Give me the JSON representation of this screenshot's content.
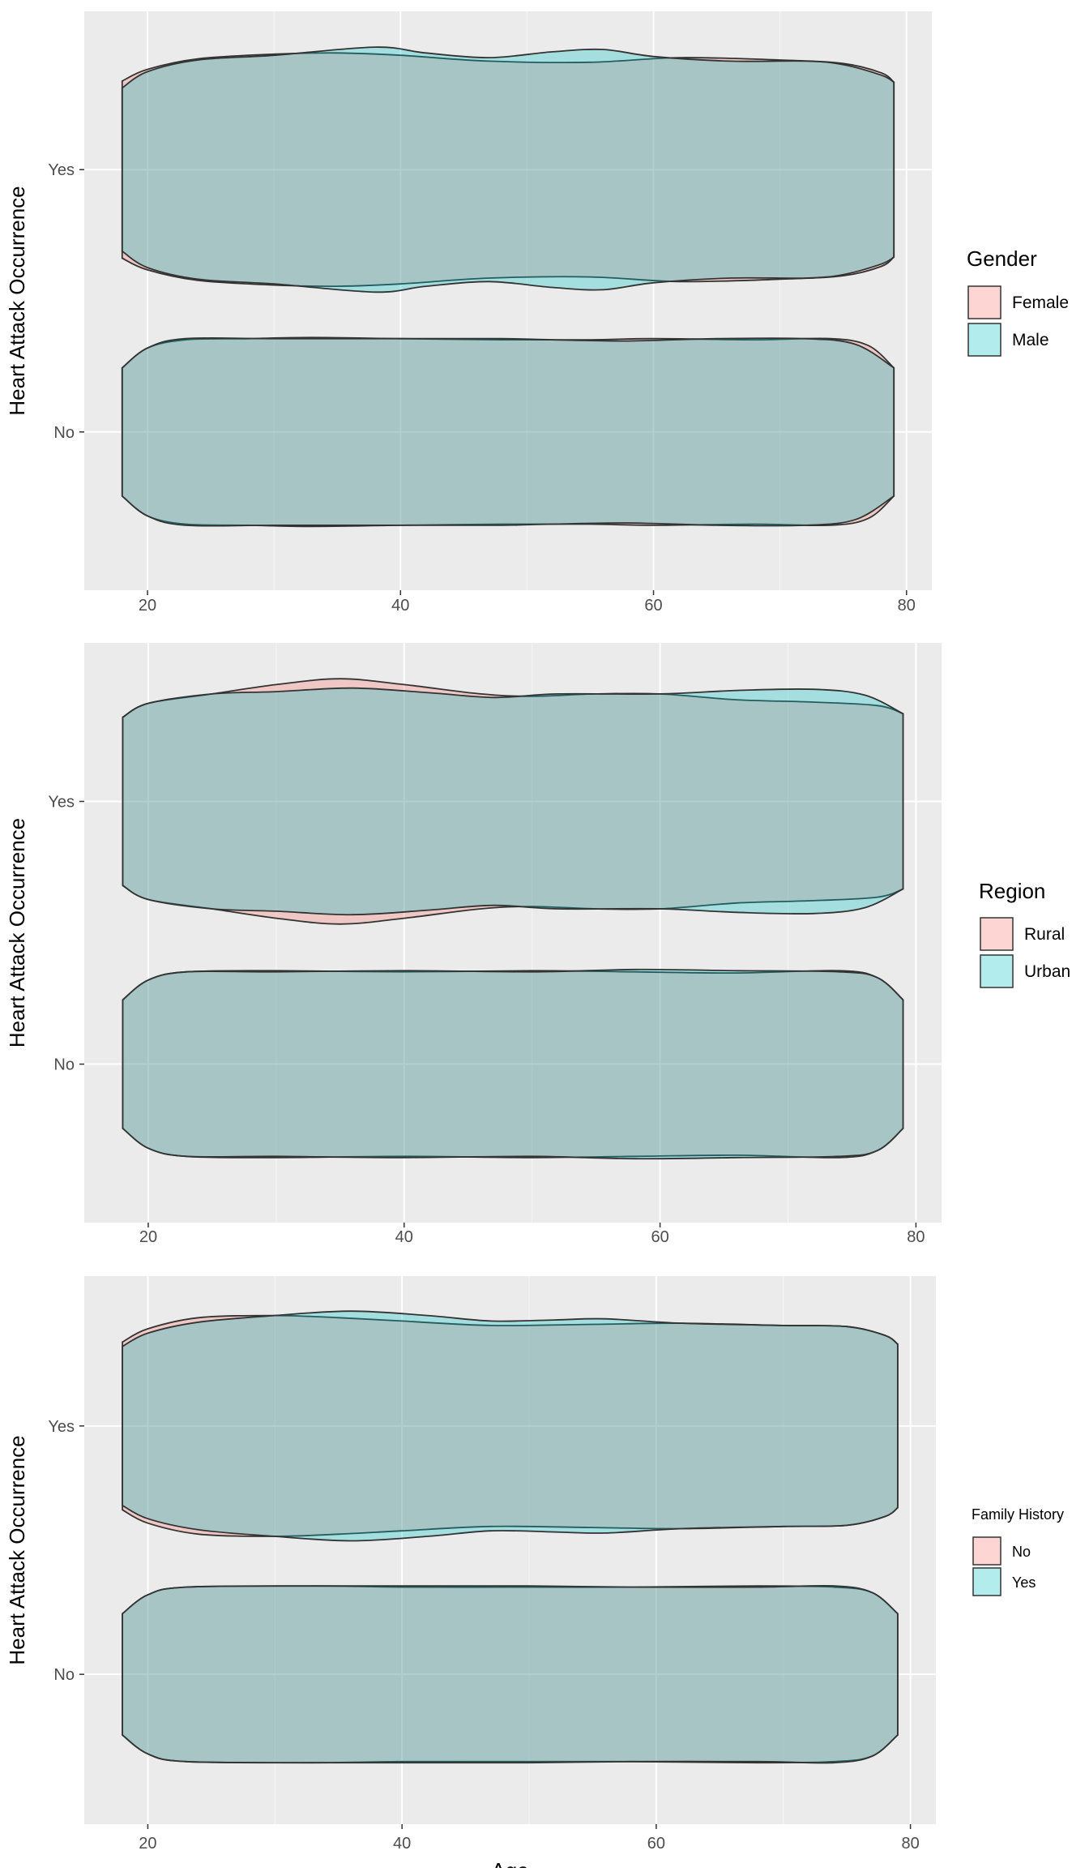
{
  "colors": {
    "panel_bg": "#EBEBEB",
    "grid": "#FFFFFF",
    "fill_a": "#F8766D",
    "fill_b": "#00BFC4",
    "outline": "#333333",
    "text": "#4D4D4D",
    "title_text": "#000000"
  },
  "chart_data": [
    {
      "type": "violin",
      "ylabel": "Heart Attack Occurrence",
      "xlabel": "",
      "y_categories": [
        "No",
        "Yes"
      ],
      "x_ticks": [
        20,
        40,
        60,
        80
      ],
      "xlim": [
        15,
        82
      ],
      "age_range": [
        18,
        79
      ],
      "grid": true,
      "legend": {
        "title": "Gender",
        "placement": "right",
        "entries": [
          "Female",
          "Male"
        ]
      },
      "series": [
        {
          "name": "Female",
          "groups": {
            "Yes": {
              "x": [
                18,
                20,
                24,
                30,
                35,
                40,
                47,
                55,
                62,
                70,
                75,
                78,
                79
              ],
              "w": [
                0.76,
                0.86,
                0.95,
                0.99,
                1.0,
                0.98,
                0.93,
                0.92,
                0.96,
                0.94,
                0.91,
                0.83,
                0.75
              ]
            },
            "No": {
              "x": [
                18,
                20,
                23,
                28,
                33,
                40,
                48,
                55,
                60,
                68,
                74,
                77,
                79
              ],
              "w": [
                0.55,
                0.72,
                0.79,
                0.8,
                0.81,
                0.8,
                0.79,
                0.79,
                0.8,
                0.79,
                0.8,
                0.74,
                0.55
              ]
            }
          }
        },
        {
          "name": "Male",
          "groups": {
            "Yes": {
              "x": [
                18,
                20,
                24,
                30,
                38,
                42,
                47,
                52,
                56,
                60,
                66,
                72,
                75,
                78,
                79
              ],
              "w": [
                0.7,
                0.84,
                0.94,
                0.98,
                1.05,
                1.0,
                0.96,
                1.01,
                1.03,
                0.97,
                0.93,
                0.93,
                0.9,
                0.81,
                0.75
              ]
            },
            "No": {
              "x": [
                18,
                20,
                23,
                30,
                40,
                48,
                52,
                58,
                65,
                72,
                76,
                79
              ],
              "w": [
                0.55,
                0.72,
                0.8,
                0.8,
                0.8,
                0.8,
                0.79,
                0.78,
                0.8,
                0.8,
                0.75,
                0.55
              ]
            }
          }
        }
      ]
    },
    {
      "type": "violin",
      "ylabel": "Heart Attack Occurrence",
      "xlabel": "",
      "y_categories": [
        "No",
        "Yes"
      ],
      "x_ticks": [
        20,
        40,
        60,
        80
      ],
      "xlim": [
        15,
        82
      ],
      "age_range": [
        18,
        79
      ],
      "grid": true,
      "legend": {
        "title": "Region",
        "placement": "right",
        "entries": [
          "Rural",
          "Urban"
        ]
      },
      "series": [
        {
          "name": "Rural",
          "groups": {
            "Yes": {
              "x": [
                18,
                20,
                25,
                30,
                35,
                40,
                46,
                50,
                55,
                60,
                66,
                72,
                77,
                79
              ],
              "w": [
                0.72,
                0.84,
                0.92,
                1.0,
                1.05,
                1.0,
                0.92,
                0.9,
                0.92,
                0.92,
                0.87,
                0.85,
                0.82,
                0.75
              ]
            },
            "No": {
              "x": [
                18,
                20,
                23,
                30,
                40,
                50,
                58,
                66,
                74,
                77,
                79
              ],
              "w": [
                0.55,
                0.72,
                0.79,
                0.8,
                0.79,
                0.8,
                0.79,
                0.78,
                0.8,
                0.74,
                0.55
              ]
            }
          }
        },
        {
          "name": "Urban",
          "groups": {
            "Yes": {
              "x": [
                18,
                20,
                25,
                30,
                36,
                42,
                47,
                52,
                60,
                66,
                72,
                76,
                79
              ],
              "w": [
                0.72,
                0.84,
                0.92,
                0.94,
                0.97,
                0.93,
                0.89,
                0.92,
                0.92,
                0.95,
                0.96,
                0.91,
                0.75
              ]
            },
            "No": {
              "x": [
                18,
                20,
                23,
                30,
                40,
                50,
                58,
                66,
                74,
                77,
                79
              ],
              "w": [
                0.55,
                0.72,
                0.79,
                0.79,
                0.8,
                0.79,
                0.81,
                0.8,
                0.79,
                0.74,
                0.55
              ]
            }
          }
        }
      ]
    },
    {
      "type": "violin",
      "ylabel": "Heart Attack Occurrence",
      "xlabel": "Age",
      "y_categories": [
        "No",
        "Yes"
      ],
      "x_ticks": [
        20,
        40,
        60,
        80
      ],
      "xlim": [
        15,
        82
      ],
      "age_range": [
        18,
        79
      ],
      "grid": true,
      "legend": {
        "title": "Family History",
        "placement": "right",
        "entries": [
          "No",
          "Yes"
        ]
      },
      "series": [
        {
          "name": "No",
          "groups": {
            "Yes": {
              "x": [
                18,
                20,
                24,
                30,
                35,
                40,
                47,
                55,
                62,
                70,
                75,
                78,
                79
              ],
              "w": [
                0.76,
                0.88,
                0.98,
                1.0,
                0.98,
                0.95,
                0.91,
                0.92,
                0.93,
                0.91,
                0.9,
                0.82,
                0.74
              ]
            },
            "No": {
              "x": [
                18,
                20,
                23,
                33,
                40,
                50,
                58,
                68,
                74,
                77,
                79
              ],
              "w": [
                0.55,
                0.72,
                0.79,
                0.8,
                0.79,
                0.79,
                0.79,
                0.8,
                0.79,
                0.74,
                0.55
              ]
            }
          }
        },
        {
          "name": "Yes",
          "groups": {
            "Yes": {
              "x": [
                18,
                20,
                24,
                30,
                36,
                42,
                47,
                52,
                56,
                62,
                70,
                75,
                78,
                79
              ],
              "w": [
                0.72,
                0.84,
                0.94,
                1.0,
                1.04,
                1.0,
                0.95,
                0.96,
                0.97,
                0.93,
                0.91,
                0.9,
                0.82,
                0.74
              ]
            },
            "No": {
              "x": [
                18,
                20,
                23,
                33,
                40,
                50,
                58,
                68,
                74,
                77,
                79
              ],
              "w": [
                0.55,
                0.72,
                0.79,
                0.8,
                0.8,
                0.8,
                0.79,
                0.79,
                0.8,
                0.74,
                0.55
              ]
            }
          }
        }
      ]
    }
  ]
}
